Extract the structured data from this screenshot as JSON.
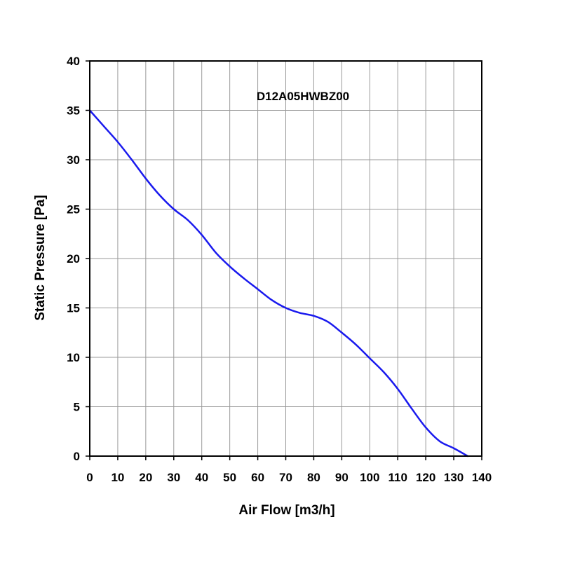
{
  "chart_data": {
    "type": "line",
    "title": "D12A05HWBZ00",
    "xlabel": "Air Flow [m3/h]",
    "ylabel": "Static Pressure [Pa]",
    "xlim": [
      0,
      140
    ],
    "ylim": [
      0,
      40
    ],
    "xticks": [
      0,
      10,
      20,
      30,
      40,
      50,
      60,
      70,
      80,
      90,
      100,
      110,
      120,
      130,
      140
    ],
    "yticks": [
      0,
      5,
      10,
      15,
      20,
      25,
      30,
      35,
      40
    ],
    "grid": true,
    "series": [
      {
        "color": "#1a1aee",
        "x": [
          0,
          5,
          10,
          15,
          20,
          25,
          30,
          35,
          40,
          45,
          50,
          55,
          60,
          65,
          70,
          75,
          80,
          85,
          90,
          95,
          100,
          105,
          110,
          115,
          120,
          125,
          130,
          135
        ],
        "y": [
          35,
          33.4,
          31.8,
          30.0,
          28.1,
          26.4,
          25.0,
          23.9,
          22.4,
          20.6,
          19.2,
          18.0,
          16.9,
          15.8,
          15.0,
          14.5,
          14.2,
          13.6,
          12.5,
          11.3,
          9.9,
          8.5,
          6.8,
          4.8,
          2.9,
          1.5,
          0.8,
          0
        ]
      }
    ]
  }
}
